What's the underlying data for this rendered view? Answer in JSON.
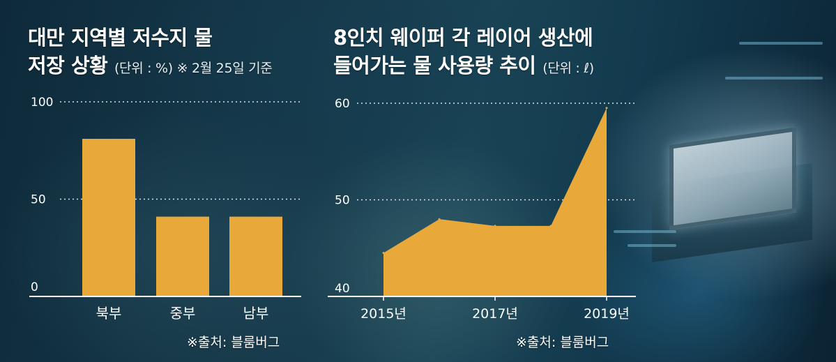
{
  "left_panel": {
    "title_line1": "대만 지역별 저수지 물",
    "title_line2": "저장 상황",
    "unit_note": "(단위 : %) ※ 2월 25일 기준",
    "source": "※출처: 블룸버그"
  },
  "right_panel": {
    "title_line1": "8인치 웨이퍼 각 레이어 생산에",
    "title_line2": "들어가는 물 사용량 추이",
    "unit_note": "(단위 : ℓ)",
    "source": "※출처: 블룸버그"
  },
  "colors": {
    "bar": "#e9a93a",
    "area": "#e9a93a",
    "gridline": "#d8e2e8",
    "axis": "#ffffff"
  },
  "chart_data": [
    {
      "type": "bar",
      "title": "대만 지역별 저수지 물 저장 상황",
      "categories": [
        "북부",
        "중부",
        "남부"
      ],
      "values": [
        81,
        41,
        41
      ],
      "ylim": [
        0,
        100
      ],
      "yticks": [
        "0",
        "50",
        "100"
      ],
      "grid": true
    },
    {
      "type": "area",
      "title": "8인치 웨이퍼 각 레이어 생산에 들어가는 물 사용량 추이",
      "x": [
        2015,
        2016,
        2017,
        2018,
        2019
      ],
      "values": [
        44.5,
        48,
        47.3,
        47.3,
        59.5
      ],
      "xticks": [
        "2015년",
        "2017년",
        "2019년"
      ],
      "xtick_values": [
        2015,
        2017,
        2019
      ],
      "ylim": [
        40,
        60
      ],
      "yticks": [
        "40",
        "50",
        "60"
      ],
      "grid": true
    }
  ]
}
